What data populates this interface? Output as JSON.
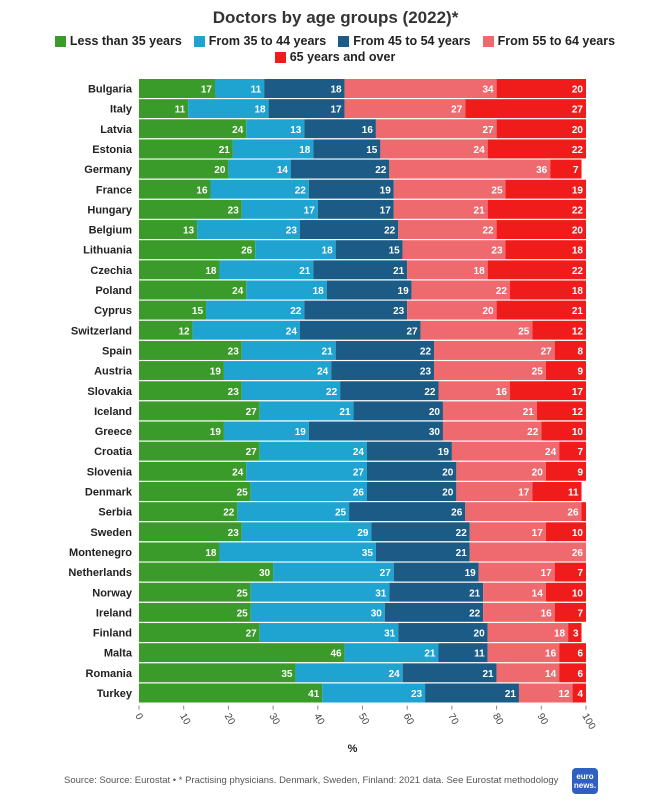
{
  "chart_data": {
    "type": "bar",
    "orientation": "horizontal",
    "stacked": true,
    "title": "Doctors by age groups (2022)*",
    "xlabel": "%",
    "xlim": [
      0,
      100
    ],
    "x_ticks": [
      "0",
      "10",
      "20",
      "30",
      "40",
      "50",
      "60",
      "70",
      "80",
      "90",
      "100"
    ],
    "legend_position": "top",
    "categories": [
      "Bulgaria",
      "Italy",
      "Latvia",
      "Estonia",
      "Germany",
      "France",
      "Hungary",
      "Belgium",
      "Lithuania",
      "Czechia",
      "Poland",
      "Cyprus",
      "Switzerland",
      "Spain",
      "Austria",
      "Slovakia",
      "Iceland",
      "Greece",
      "Croatia",
      "Slovenia",
      "Denmark",
      "Serbia",
      "Sweden",
      "Montenegro",
      "Netherlands",
      "Norway",
      "Ireland",
      "Finland",
      "Malta",
      "Romania",
      "Turkey"
    ],
    "series": [
      {
        "name": "Less than 35 years",
        "color": "#3a9a2a",
        "values": [
          17,
          11,
          24,
          21,
          20,
          16,
          23,
          13,
          26,
          18,
          24,
          15,
          12,
          23,
          19,
          23,
          27,
          19,
          27,
          24,
          25,
          22,
          23,
          18,
          30,
          25,
          25,
          27,
          46,
          35,
          41
        ]
      },
      {
        "name": "From 35 to 44 years",
        "color": "#1fa3d1",
        "values": [
          11,
          18,
          13,
          18,
          14,
          22,
          17,
          23,
          18,
          21,
          18,
          22,
          24,
          21,
          24,
          22,
          21,
          19,
          24,
          27,
          26,
          25,
          29,
          35,
          27,
          31,
          30,
          31,
          21,
          24,
          23
        ]
      },
      {
        "name": "From 45 to 54 years",
        "color": "#1b5b85",
        "values": [
          18,
          17,
          16,
          15,
          22,
          19,
          17,
          22,
          15,
          21,
          19,
          23,
          27,
          22,
          23,
          22,
          20,
          30,
          19,
          20,
          20,
          26,
          22,
          21,
          19,
          21,
          22,
          20,
          11,
          21,
          21
        ]
      },
      {
        "name": "From 55 to 64 years",
        "color": "#ee6a6e",
        "values": [
          34,
          27,
          27,
          24,
          36,
          25,
          21,
          22,
          23,
          18,
          22,
          20,
          25,
          27,
          25,
          16,
          21,
          22,
          24,
          20,
          17,
          26,
          17,
          26,
          17,
          14,
          16,
          18,
          16,
          14,
          12
        ]
      },
      {
        "name": "65 years and over",
        "color": "#f01c1c",
        "values": [
          20,
          27,
          20,
          22,
          7,
          19,
          22,
          20,
          18,
          22,
          18,
          21,
          12,
          8,
          9,
          17,
          12,
          10,
          7,
          9,
          11,
          "",
          10,
          "",
          7,
          10,
          7,
          3,
          6,
          6,
          4
        ]
      }
    ]
  },
  "footer": {
    "source": "Source: Source: Eurostat • * Practising physicians. Denmark, Sweden, Finland: 2021 data. See Eurostat methodology",
    "logo_text": "euro news."
  }
}
